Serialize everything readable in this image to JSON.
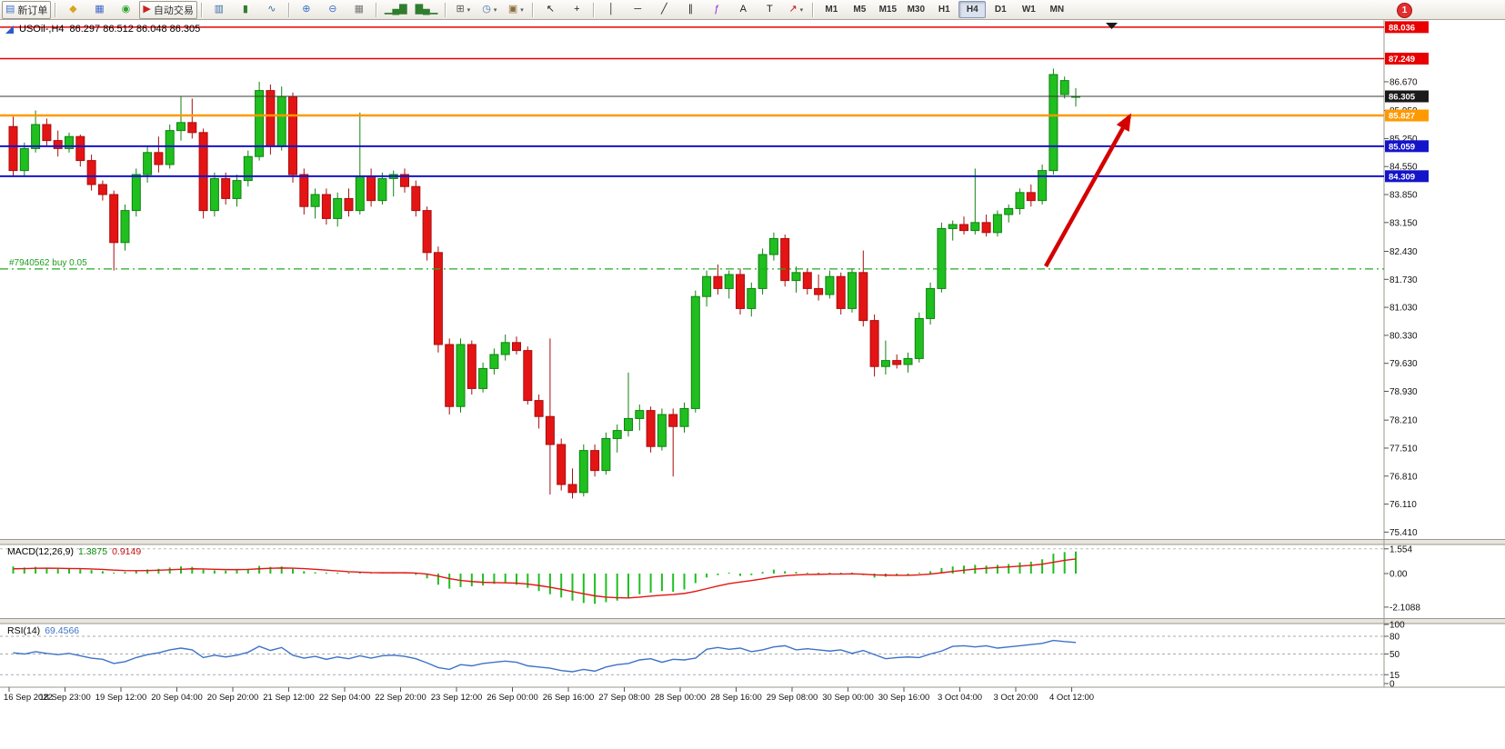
{
  "toolbar": {
    "dropdown_glyph": "▾",
    "notification_badge": "1",
    "items": [
      {
        "type": "button",
        "name": "new-order-button",
        "framed": true,
        "glyph": "▤",
        "glyph_color": "#3e72c8",
        "label": "新订单"
      },
      {
        "type": "sep"
      },
      {
        "type": "button",
        "name": "layouts-icon-button",
        "glyph": "◆",
        "glyph_color": "#d9a520"
      },
      {
        "type": "button",
        "name": "market-watch-button",
        "glyph": "▦",
        "glyph_color": "#4169c8"
      },
      {
        "type": "button",
        "name": "navigator-button",
        "glyph": "◉",
        "glyph_color": "#2fa32f"
      },
      {
        "type": "button",
        "name": "auto-trading-button",
        "framed": true,
        "glyph": "▶",
        "glyph_color": "#cc2222",
        "label": "自动交易"
      },
      {
        "type": "sep"
      },
      {
        "type": "button",
        "name": "bar-chart-button",
        "glyph": "▥",
        "glyph_color": "#3a6ea5"
      },
      {
        "type": "button",
        "name": "candlestick-chart-button",
        "glyph": "▮",
        "glyph_color": "#2f7d2f"
      },
      {
        "type": "button",
        "name": "line-chart-button",
        "glyph": "∿",
        "glyph_color": "#3a6ea5"
      },
      {
        "type": "sep"
      },
      {
        "type": "button",
        "name": "zoom-in-button",
        "glyph": "⊕",
        "glyph_color": "#3e72c8"
      },
      {
        "type": "button",
        "name": "zoom-out-button",
        "glyph": "⊖",
        "glyph_color": "#3e72c8"
      },
      {
        "type": "button",
        "name": "tile-windows-button",
        "glyph": "▦",
        "glyph_color": "#777777"
      },
      {
        "type": "sep"
      },
      {
        "type": "button",
        "name": "arrange-ascending-button",
        "glyph": "▁▄▇",
        "glyph_color": "#2f7d2f"
      },
      {
        "type": "button",
        "name": "arrange-descending-button",
        "glyph": "▇▄▁",
        "glyph_color": "#2f7d2f"
      },
      {
        "type": "sep"
      },
      {
        "type": "button",
        "name": "new-chart-button",
        "glyph": "⊞",
        "glyph_color": "#555555",
        "dropdown": true
      },
      {
        "type": "button",
        "name": "periods-button",
        "glyph": "◷",
        "glyph_color": "#3a6ea5",
        "dropdown": true
      },
      {
        "type": "button",
        "name": "templates-button",
        "glyph": "▣",
        "glyph_color": "#8a6d3b",
        "dropdown": true
      },
      {
        "type": "sep"
      },
      {
        "type": "button",
        "name": "cursor-button",
        "glyph": "↖",
        "glyph_color": "#222222"
      },
      {
        "type": "button",
        "name": "crosshair-button",
        "glyph": "+",
        "glyph_color": "#222222"
      },
      {
        "type": "sep"
      },
      {
        "type": "button",
        "name": "vertical-line-button",
        "glyph": "│",
        "glyph_color": "#222222"
      },
      {
        "type": "button",
        "name": "horizontal-line-button",
        "glyph": "─",
        "glyph_color": "#222222"
      },
      {
        "type": "button",
        "name": "trendline-button",
        "glyph": "╱",
        "glyph_color": "#222222"
      },
      {
        "type": "button",
        "name": "channel-button",
        "glyph": "∥",
        "glyph_color": "#222222"
      },
      {
        "type": "button",
        "name": "fibonacci-button",
        "glyph": "ƒ",
        "glyph_color": "#8a2be2"
      },
      {
        "type": "button",
        "name": "text-button",
        "glyph": "A",
        "glyph_color": "#222222"
      },
      {
        "type": "button",
        "name": "text-label-button",
        "glyph": "T",
        "glyph_color": "#222222"
      },
      {
        "type": "button",
        "name": "arrows-button",
        "glyph": "↗",
        "glyph_color": "#c01010",
        "dropdown": true
      },
      {
        "type": "sep"
      }
    ],
    "timeframes": [
      "M1",
      "M5",
      "M15",
      "M30",
      "H1",
      "H4",
      "D1",
      "W1",
      "MN"
    ],
    "active_timeframe": "H4"
  },
  "chart": {
    "symbol_title": "USOil-,H4",
    "ohlc_text": "86.297 86.512 86.048 86.305"
  },
  "chart_data": {
    "type": "candlestick",
    "symbol": "USOil-",
    "timeframe": "H4",
    "colors": {
      "bull": "#1fbf1f",
      "bull_border": "#108210",
      "bear": "#e51414",
      "bear_border": "#a80d0d",
      "macd_histogram": "#1fbf1f",
      "macd_signal": "#e51414",
      "rsi_line": "#3e72c9",
      "annotation_arrow": "#d40000",
      "position_line": "#22aa22"
    },
    "candles": [
      [
        85.55,
        85.8,
        84.3,
        84.45
      ],
      [
        84.45,
        85.15,
        84.3,
        85.0
      ],
      [
        85.0,
        85.95,
        84.9,
        85.6
      ],
      [
        85.6,
        85.75,
        85.05,
        85.2
      ],
      [
        85.2,
        85.45,
        84.8,
        85.0
      ],
      [
        85.0,
        85.4,
        84.9,
        85.3
      ],
      [
        85.3,
        85.35,
        84.55,
        84.7
      ],
      [
        84.7,
        84.85,
        83.95,
        84.1
      ],
      [
        84.1,
        84.2,
        83.7,
        83.85
      ],
      [
        83.85,
        83.95,
        81.95,
        82.65
      ],
      [
        82.65,
        83.6,
        82.45,
        83.45
      ],
      [
        83.45,
        84.5,
        83.3,
        84.35
      ],
      [
        84.35,
        85.05,
        84.15,
        84.9
      ],
      [
        84.9,
        85.3,
        84.4,
        84.6
      ],
      [
        84.6,
        85.6,
        84.5,
        85.45
      ],
      [
        85.45,
        86.3,
        85.2,
        85.65
      ],
      [
        85.65,
        86.25,
        85.25,
        85.4
      ],
      [
        85.4,
        85.5,
        83.25,
        83.45
      ],
      [
        83.45,
        84.4,
        83.3,
        84.25
      ],
      [
        84.25,
        84.4,
        83.6,
        83.75
      ],
      [
        83.75,
        84.35,
        83.55,
        84.2
      ],
      [
        84.2,
        84.95,
        84.05,
        84.8
      ],
      [
        84.8,
        86.67,
        84.7,
        86.45
      ],
      [
        86.45,
        86.6,
        84.85,
        85.05
      ],
      [
        85.05,
        86.55,
        84.95,
        86.3
      ],
      [
        86.3,
        86.4,
        84.15,
        84.35
      ],
      [
        84.35,
        84.5,
        83.35,
        83.55
      ],
      [
        83.55,
        84.0,
        83.25,
        83.85
      ],
      [
        83.85,
        84.0,
        83.1,
        83.25
      ],
      [
        83.25,
        83.9,
        83.05,
        83.75
      ],
      [
        83.75,
        84.0,
        83.3,
        83.45
      ],
      [
        83.45,
        85.9,
        83.35,
        84.3
      ],
      [
        84.3,
        84.5,
        83.55,
        83.7
      ],
      [
        83.7,
        84.4,
        83.6,
        84.25
      ],
      [
        84.25,
        84.45,
        83.8,
        84.35
      ],
      [
        84.35,
        84.5,
        83.9,
        84.05
      ],
      [
        84.05,
        84.2,
        83.3,
        83.45
      ],
      [
        83.45,
        83.55,
        82.2,
        82.4
      ],
      [
        82.4,
        82.55,
        79.9,
        80.1
      ],
      [
        80.1,
        80.25,
        78.35,
        78.55
      ],
      [
        78.55,
        80.25,
        78.4,
        80.1
      ],
      [
        80.1,
        80.2,
        78.85,
        79.0
      ],
      [
        79.0,
        79.65,
        78.9,
        79.5
      ],
      [
        79.5,
        80.0,
        79.35,
        79.85
      ],
      [
        79.85,
        80.35,
        79.7,
        80.15
      ],
      [
        80.15,
        80.3,
        79.85,
        79.95
      ],
      [
        79.95,
        80.05,
        78.6,
        78.7
      ],
      [
        78.7,
        78.85,
        78.0,
        78.3
      ],
      [
        78.3,
        80.25,
        76.35,
        77.6
      ],
      [
        77.6,
        77.75,
        76.45,
        76.6
      ],
      [
        76.6,
        77.0,
        76.25,
        76.4
      ],
      [
        76.4,
        77.6,
        76.3,
        77.45
      ],
      [
        77.45,
        77.6,
        76.8,
        76.95
      ],
      [
        76.95,
        77.9,
        76.85,
        77.75
      ],
      [
        77.75,
        78.1,
        77.4,
        77.95
      ],
      [
        77.95,
        79.4,
        77.8,
        78.25
      ],
      [
        78.25,
        78.6,
        77.95,
        78.45
      ],
      [
        78.45,
        78.55,
        77.4,
        77.55
      ],
      [
        77.55,
        78.5,
        77.45,
        78.35
      ],
      [
        78.35,
        78.5,
        76.8,
        78.05
      ],
      [
        78.05,
        78.65,
        77.9,
        78.5
      ],
      [
        78.5,
        81.45,
        78.4,
        81.3
      ],
      [
        81.3,
        81.95,
        81.05,
        81.8
      ],
      [
        81.8,
        82.1,
        81.35,
        81.5
      ],
      [
        81.5,
        81.95,
        81.25,
        81.85
      ],
      [
        81.85,
        82.0,
        80.85,
        81.0
      ],
      [
        81.0,
        81.65,
        80.8,
        81.5
      ],
      [
        81.5,
        82.5,
        81.35,
        82.35
      ],
      [
        82.35,
        82.9,
        82.2,
        82.75
      ],
      [
        82.75,
        82.85,
        81.55,
        81.7
      ],
      [
        81.7,
        82.05,
        81.4,
        81.9
      ],
      [
        81.9,
        82.0,
        81.35,
        81.5
      ],
      [
        81.5,
        81.85,
        81.2,
        81.35
      ],
      [
        81.35,
        81.95,
        81.25,
        81.8
      ],
      [
        81.8,
        81.9,
        80.85,
        81.0
      ],
      [
        81.0,
        82.0,
        80.9,
        81.9
      ],
      [
        81.9,
        82.45,
        80.55,
        80.7
      ],
      [
        80.7,
        80.85,
        79.3,
        79.55
      ],
      [
        79.55,
        80.2,
        79.35,
        79.7
      ],
      [
        79.7,
        79.85,
        79.5,
        79.6
      ],
      [
        79.6,
        79.9,
        79.4,
        79.75
      ],
      [
        79.75,
        80.9,
        79.65,
        80.75
      ],
      [
        80.75,
        81.65,
        80.6,
        81.5
      ],
      [
        81.5,
        83.15,
        81.4,
        83.0
      ],
      [
        83.0,
        83.2,
        82.7,
        83.1
      ],
      [
        83.1,
        83.3,
        82.85,
        82.95
      ],
      [
        82.95,
        84.5,
        82.85,
        83.15
      ],
      [
        83.15,
        83.35,
        82.8,
        82.9
      ],
      [
        82.9,
        83.45,
        82.8,
        83.35
      ],
      [
        83.35,
        83.6,
        83.15,
        83.5
      ],
      [
        83.5,
        84.0,
        83.35,
        83.9
      ],
      [
        83.9,
        84.1,
        83.55,
        83.7
      ],
      [
        83.7,
        84.6,
        83.6,
        84.45
      ],
      [
        84.45,
        87.0,
        84.35,
        86.85
      ],
      [
        86.35,
        86.8,
        86.25,
        86.7
      ],
      [
        86.297,
        86.512,
        86.048,
        86.305
      ]
    ],
    "hlines": [
      {
        "price": 88.036,
        "color": "#e80000",
        "width": 1.5
      },
      {
        "price": 87.249,
        "color": "#e80000",
        "width": 1.5
      },
      {
        "price": 86.305,
        "color": "#3a3a3a",
        "width": 1
      },
      {
        "price": 85.827,
        "color": "#ff9900",
        "width": 2.5
      },
      {
        "price": 85.059,
        "color": "#1414c8",
        "width": 2
      },
      {
        "price": 84.309,
        "color": "#1414c8",
        "width": 2
      }
    ],
    "position_line": {
      "price": 81.99,
      "label": "#7940562 buy 0.05"
    },
    "price_axis": {
      "plain_labels": [
        86.67,
        85.95,
        85.25,
        84.55,
        83.85,
        83.15,
        82.43,
        81.73,
        81.03,
        80.33,
        79.63,
        78.93,
        78.21,
        77.51,
        76.81,
        76.11,
        75.41
      ],
      "tagged_labels": [
        {
          "text": "88.036",
          "price": 88.036,
          "bg": "#e80000",
          "fg": "#ffffff"
        },
        {
          "text": "87.249",
          "price": 87.249,
          "bg": "#e80000",
          "fg": "#ffffff"
        },
        {
          "text": "86.305",
          "price": 86.305,
          "bg": "#1a1a1a",
          "fg": "#ffffff"
        },
        {
          "text": "85.827",
          "price": 85.827,
          "bg": "#ff9900",
          "fg": "#ffffff"
        },
        {
          "text": "85.059",
          "price": 85.059,
          "bg": "#1414c8",
          "fg": "#ffffff"
        },
        {
          "text": "84.309",
          "price": 84.309,
          "bg": "#1414c8",
          "fg": "#ffffff"
        }
      ]
    },
    "time_labels": [
      "16 Sep 2022",
      "18 Sep 23:00",
      "19 Sep 12:00",
      "20 Sep 04:00",
      "20 Sep 20:00",
      "21 Sep 12:00",
      "22 Sep 04:00",
      "22 Sep 20:00",
      "23 Sep 12:00",
      "26 Sep 00:00",
      "26 Sep 16:00",
      "27 Sep 08:00",
      "28 Sep 00:00",
      "28 Sep 16:00",
      "29 Sep 08:00",
      "30 Sep 00:00",
      "30 Sep 16:00",
      "3 Oct 04:00",
      "3 Oct 20:00",
      "4 Oct 12:00"
    ],
    "macd": {
      "label": "MACD(12,26,9)",
      "value_main": "1.3875",
      "value_signal": "0.9149",
      "scale_labels": [
        {
          "text": "1.554",
          "value": 1.554
        },
        {
          "text": "0.00",
          "value": 0
        },
        {
          "text": "-2.1088",
          "value": -2.1088
        }
      ],
      "histogram": [
        0.45,
        0.38,
        0.42,
        0.35,
        0.3,
        0.32,
        0.28,
        0.22,
        0.15,
        0.05,
        0.1,
        0.18,
        0.26,
        0.3,
        0.38,
        0.45,
        0.42,
        0.25,
        0.2,
        0.18,
        0.22,
        0.3,
        0.48,
        0.42,
        0.45,
        0.3,
        0.15,
        0.08,
        0.0,
        -0.02,
        -0.05,
        0.0,
        -0.03,
        0.02,
        0.05,
        0.03,
        -0.08,
        -0.3,
        -0.7,
        -0.95,
        -0.85,
        -0.8,
        -0.75,
        -0.65,
        -0.6,
        -0.7,
        -0.9,
        -1.1,
        -1.3,
        -1.5,
        -1.7,
        -1.85,
        -1.9,
        -1.8,
        -1.7,
        -1.55,
        -1.3,
        -1.2,
        -1.1,
        -1.15,
        -1.0,
        -0.6,
        -0.25,
        -0.1,
        -0.05,
        -0.15,
        -0.1,
        0.1,
        0.25,
        0.15,
        0.1,
        0.05,
        0.0,
        0.05,
        -0.05,
        0.05,
        -0.1,
        -0.25,
        -0.2,
        -0.15,
        -0.1,
        0.05,
        0.15,
        0.35,
        0.45,
        0.5,
        0.55,
        0.5,
        0.55,
        0.6,
        0.7,
        0.75,
        0.9,
        1.25,
        1.35,
        1.3875
      ],
      "signal": [
        0.3,
        0.31,
        0.33,
        0.34,
        0.33,
        0.32,
        0.31,
        0.29,
        0.26,
        0.22,
        0.19,
        0.18,
        0.19,
        0.21,
        0.24,
        0.27,
        0.3,
        0.29,
        0.27,
        0.25,
        0.25,
        0.26,
        0.3,
        0.33,
        0.35,
        0.34,
        0.31,
        0.27,
        0.22,
        0.17,
        0.12,
        0.09,
        0.06,
        0.05,
        0.05,
        0.05,
        0.03,
        -0.03,
        -0.16,
        -0.32,
        -0.43,
        -0.5,
        -0.55,
        -0.57,
        -0.58,
        -0.6,
        -0.66,
        -0.75,
        -0.86,
        -0.99,
        -1.13,
        -1.27,
        -1.4,
        -1.48,
        -1.52,
        -1.53,
        -1.48,
        -1.42,
        -1.36,
        -1.32,
        -1.25,
        -1.12,
        -0.95,
        -0.78,
        -0.63,
        -0.53,
        -0.44,
        -0.33,
        -0.21,
        -0.14,
        -0.09,
        -0.06,
        -0.05,
        -0.03,
        -0.03,
        -0.02,
        -0.04,
        -0.08,
        -0.1,
        -0.11,
        -0.11,
        -0.08,
        -0.03,
        0.05,
        0.13,
        0.21,
        0.28,
        0.33,
        0.38,
        0.42,
        0.47,
        0.52,
        0.59,
        0.71,
        0.83,
        0.9149
      ]
    },
    "rsi": {
      "label": "RSI(14)",
      "value": "69.4566",
      "scale_labels": [
        {
          "text": "100",
          "value": 100
        },
        {
          "text": "80",
          "value": 80
        },
        {
          "text": "50",
          "value": 50
        },
        {
          "text": "15",
          "value": 15
        },
        {
          "text": "0",
          "value": 0
        }
      ],
      "level_lines": [
        80,
        50,
        15
      ],
      "series": [
        52,
        50,
        54,
        51,
        49,
        51,
        47,
        43,
        41,
        34,
        37,
        44,
        49,
        52,
        57,
        60,
        57,
        44,
        48,
        45,
        48,
        53,
        63,
        56,
        61,
        48,
        43,
        46,
        41,
        45,
        42,
        47,
        43,
        47,
        48,
        46,
        42,
        35,
        27,
        24,
        32,
        30,
        34,
        36,
        38,
        36,
        30,
        28,
        26,
        22,
        20,
        24,
        21,
        28,
        32,
        34,
        40,
        42,
        36,
        41,
        40,
        43,
        58,
        61,
        58,
        60,
        54,
        57,
        62,
        64,
        57,
        59,
        57,
        55,
        57,
        51,
        56,
        49,
        42,
        44,
        45,
        44,
        50,
        55,
        63,
        64,
        62,
        64,
        60,
        62,
        64,
        66,
        68,
        73,
        71,
        69.4566
      ]
    }
  }
}
